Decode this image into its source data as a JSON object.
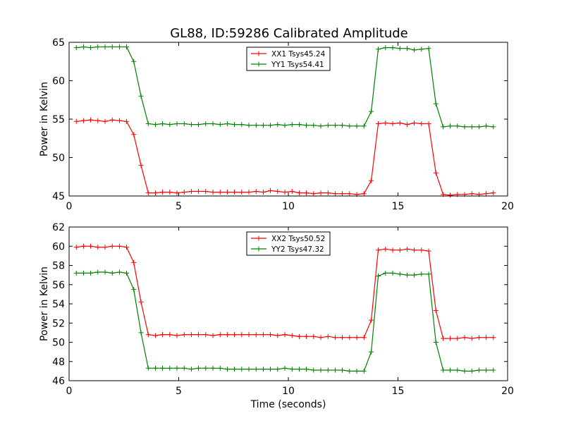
{
  "figure": {
    "title": "GL88, ID:59286 Calibrated Amplitude"
  },
  "chart_data": [
    {
      "type": "line",
      "title": "GL88, ID:59286 Calibrated Amplitude",
      "xlabel": "",
      "ylabel": "Power in Kelvin",
      "xlim": [
        0,
        20
      ],
      "ylim": [
        45,
        65
      ],
      "xticks": [
        0,
        5,
        10,
        15,
        20
      ],
      "yticks": [
        45,
        50,
        55,
        60,
        65
      ],
      "grid": false,
      "legend_position": "top-center",
      "x": [
        0.33,
        0.66,
        0.98,
        1.31,
        1.64,
        1.97,
        2.3,
        2.62,
        2.95,
        3.28,
        3.61,
        3.94,
        4.26,
        4.59,
        4.92,
        5.25,
        5.58,
        5.9,
        6.23,
        6.56,
        6.89,
        7.22,
        7.54,
        7.87,
        8.2,
        8.53,
        8.86,
        9.18,
        9.51,
        9.84,
        10.17,
        10.5,
        10.82,
        11.15,
        11.48,
        11.81,
        12.14,
        12.46,
        12.79,
        13.12,
        13.45,
        13.78,
        14.1,
        14.43,
        14.76,
        15.09,
        15.42,
        15.74,
        16.07,
        16.4,
        16.73,
        17.06,
        17.38,
        17.71,
        18.04,
        18.37,
        18.7,
        19.02,
        19.35
      ],
      "series": [
        {
          "name": "XX1 Tsys45.24",
          "color": "#ff0000",
          "values": [
            54.7,
            54.8,
            54.9,
            54.8,
            54.7,
            54.9,
            54.8,
            54.7,
            53.0,
            49.0,
            45.4,
            45.4,
            45.5,
            45.5,
            45.4,
            45.5,
            45.6,
            45.6,
            45.6,
            45.5,
            45.5,
            45.5,
            45.5,
            45.5,
            45.5,
            45.6,
            45.5,
            45.7,
            45.6,
            45.5,
            45.6,
            45.4,
            45.4,
            45.3,
            45.4,
            45.4,
            45.3,
            45.3,
            45.3,
            45.2,
            45.3,
            47.0,
            54.4,
            54.5,
            54.4,
            54.5,
            54.3,
            54.5,
            54.4,
            54.4,
            48.0,
            45.2,
            45.1,
            45.2,
            45.2,
            45.3,
            45.2,
            45.3,
            45.4
          ]
        },
        {
          "name": "YY1 Tsys54.41",
          "color": "#008000",
          "values": [
            64.3,
            64.4,
            64.3,
            64.4,
            64.4,
            64.4,
            64.4,
            64.4,
            62.5,
            58.0,
            54.4,
            54.3,
            54.4,
            54.3,
            54.4,
            54.4,
            54.3,
            54.3,
            54.4,
            54.4,
            54.3,
            54.4,
            54.3,
            54.3,
            54.2,
            54.2,
            54.2,
            54.2,
            54.3,
            54.2,
            54.3,
            54.3,
            54.2,
            54.2,
            54.1,
            54.2,
            54.2,
            54.2,
            54.1,
            54.1,
            54.1,
            56.0,
            64.1,
            64.3,
            64.3,
            64.2,
            64.2,
            64.0,
            64.1,
            64.2,
            57.0,
            54.0,
            54.1,
            54.1,
            54.0,
            54.0,
            54.0,
            54.1,
            54.0
          ]
        }
      ]
    },
    {
      "type": "line",
      "title": "",
      "xlabel": "Time (seconds)",
      "ylabel": "Power in Kelvin",
      "xlim": [
        0,
        20
      ],
      "ylim": [
        46,
        62
      ],
      "xticks": [
        0,
        5,
        10,
        15,
        20
      ],
      "yticks": [
        46,
        48,
        50,
        52,
        54,
        56,
        58,
        60,
        62
      ],
      "grid": false,
      "legend_position": "top-center",
      "x": [
        0.33,
        0.66,
        0.98,
        1.31,
        1.64,
        1.97,
        2.3,
        2.62,
        2.95,
        3.28,
        3.61,
        3.94,
        4.26,
        4.59,
        4.92,
        5.25,
        5.58,
        5.9,
        6.23,
        6.56,
        6.89,
        7.22,
        7.54,
        7.87,
        8.2,
        8.53,
        8.86,
        9.18,
        9.51,
        9.84,
        10.17,
        10.5,
        10.82,
        11.15,
        11.48,
        11.81,
        12.14,
        12.46,
        12.79,
        13.12,
        13.45,
        13.78,
        14.1,
        14.43,
        14.76,
        15.09,
        15.42,
        15.74,
        16.07,
        16.4,
        16.73,
        17.06,
        17.38,
        17.71,
        18.04,
        18.37,
        18.7,
        19.02,
        19.35
      ],
      "series": [
        {
          "name": "XX2 Tsys50.52",
          "color": "#ff0000",
          "values": [
            59.9,
            60.0,
            60.0,
            59.9,
            59.9,
            60.0,
            60.0,
            59.9,
            58.3,
            54.2,
            50.8,
            50.7,
            50.8,
            50.8,
            50.7,
            50.8,
            50.8,
            50.8,
            50.8,
            50.7,
            50.8,
            50.8,
            50.8,
            50.8,
            50.8,
            50.8,
            50.8,
            50.8,
            50.7,
            50.8,
            50.7,
            50.6,
            50.6,
            50.6,
            50.5,
            50.6,
            50.5,
            50.5,
            50.5,
            50.5,
            50.5,
            52.3,
            59.6,
            59.7,
            59.6,
            59.6,
            59.7,
            59.6,
            59.6,
            59.5,
            53.3,
            50.4,
            50.4,
            50.4,
            50.5,
            50.4,
            50.5,
            50.5,
            50.5
          ]
        },
        {
          "name": "YY2 Tsys47.32",
          "color": "#008000",
          "values": [
            57.2,
            57.2,
            57.2,
            57.3,
            57.3,
            57.2,
            57.3,
            57.2,
            55.5,
            51.0,
            47.3,
            47.3,
            47.3,
            47.3,
            47.3,
            47.3,
            47.2,
            47.3,
            47.3,
            47.3,
            47.3,
            47.2,
            47.2,
            47.2,
            47.2,
            47.2,
            47.2,
            47.2,
            47.2,
            47.3,
            47.2,
            47.2,
            47.2,
            47.1,
            47.1,
            47.1,
            47.1,
            47.1,
            47.0,
            47.0,
            47.0,
            49.0,
            56.9,
            57.2,
            57.2,
            57.1,
            57.0,
            57.0,
            57.1,
            57.1,
            50.0,
            47.1,
            47.1,
            47.1,
            47.0,
            47.0,
            47.1,
            47.1,
            47.1
          ]
        }
      ]
    }
  ]
}
